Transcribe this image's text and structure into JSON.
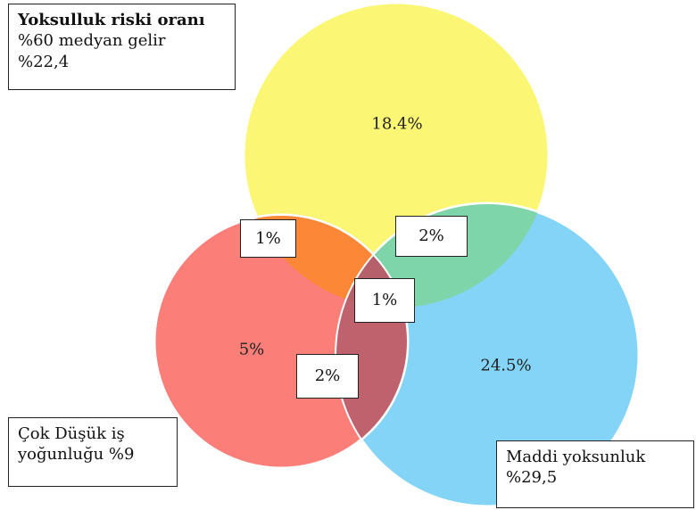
{
  "colors": {
    "yellow": "#FBF674",
    "red": "#FB7E79",
    "blue": "#83D4F6",
    "yellow_red": "#FC8737",
    "yellow_blue": "#7ED5A9",
    "red_blue": "#C0616E",
    "all_three": "#B5606A"
  },
  "legends": {
    "poverty": {
      "title": "Yoksulluk riski oranı",
      "line1": "%60 medyan gelir",
      "line2": "%22,4"
    },
    "work_intensity": {
      "line1": "Çok Düşük iş",
      "line2": "yoğunluğu %9"
    },
    "material": {
      "line1": "Maddi yoksunluk",
      "line2": "%29,5"
    }
  },
  "regions": {
    "poverty_only": "18.4%",
    "work_only": "5%",
    "material_only": "24.5%",
    "poverty_work": "1%",
    "poverty_material": "2%",
    "all_three": "1%",
    "work_material": "2%"
  }
}
